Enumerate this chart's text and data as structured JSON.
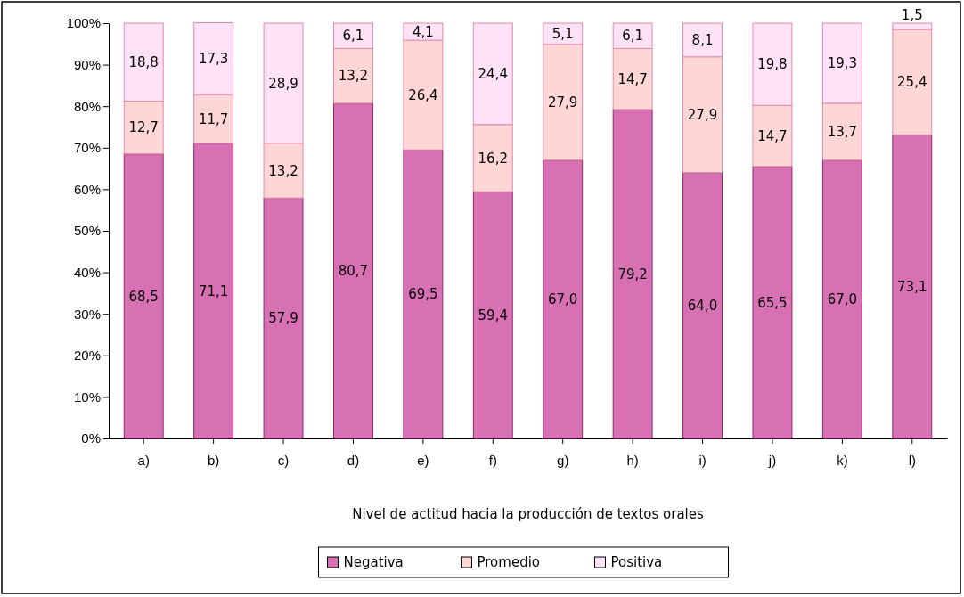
{
  "chart_data": {
    "type": "bar",
    "stacked": true,
    "xlabel": "Nivel de actitud hacia la producción de textos orales",
    "categories": [
      "a)",
      "b)",
      "c)",
      "d)",
      "e)",
      "f)",
      "g)",
      "h)",
      "i)",
      "j)",
      "k)",
      "l)"
    ],
    "series": [
      {
        "name": "Negativa",
        "color": "#d870b4",
        "values": [
          68.5,
          71.1,
          57.9,
          80.7,
          69.5,
          59.4,
          67.0,
          79.2,
          64.0,
          65.5,
          67.0,
          73.1
        ],
        "value_labels": [
          "68,5",
          "71,1",
          "57,9",
          "80,7",
          "69,5",
          "59,4",
          "67,0",
          "79,2",
          "64,0",
          "65,5",
          "67,0",
          "73,1"
        ]
      },
      {
        "name": "Promedio",
        "color": "#ffd6d6",
        "values": [
          12.7,
          11.7,
          13.2,
          13.2,
          26.4,
          16.2,
          27.9,
          14.7,
          27.9,
          14.7,
          13.7,
          25.4
        ],
        "value_labels": [
          "12,7",
          "11,7",
          "13,2",
          "13,2",
          "26,4",
          "16,2",
          "27,9",
          "14,7",
          "27,9",
          "14,7",
          "13,7",
          "25,4"
        ]
      },
      {
        "name": "Positiva",
        "color": "#ffe2f5",
        "values": [
          18.8,
          17.3,
          28.9,
          6.1,
          4.1,
          24.4,
          5.1,
          6.1,
          8.1,
          19.8,
          19.3,
          1.5
        ],
        "value_labels": [
          "18,8",
          "17,3",
          "28,9",
          "6,1",
          "4,1",
          "24,4",
          "5,1",
          "6,1",
          "8,1",
          "19,8",
          "19,3",
          "1,5"
        ]
      }
    ],
    "ylim": [
      0,
      100
    ],
    "yticks": [
      {
        "value": 0,
        "label": "0%"
      },
      {
        "value": 10,
        "label": "10%"
      },
      {
        "value": 20,
        "label": "20%"
      },
      {
        "value": 30,
        "label": "30%"
      },
      {
        "value": 40,
        "label": "40%"
      },
      {
        "value": 50,
        "label": "50%"
      },
      {
        "value": 60,
        "label": "60%"
      },
      {
        "value": 70,
        "label": "70%"
      },
      {
        "value": 80,
        "label": "80%"
      },
      {
        "value": 90,
        "label": "90%"
      },
      {
        "value": 100,
        "label": "100%"
      }
    ],
    "legend": "bottom"
  }
}
